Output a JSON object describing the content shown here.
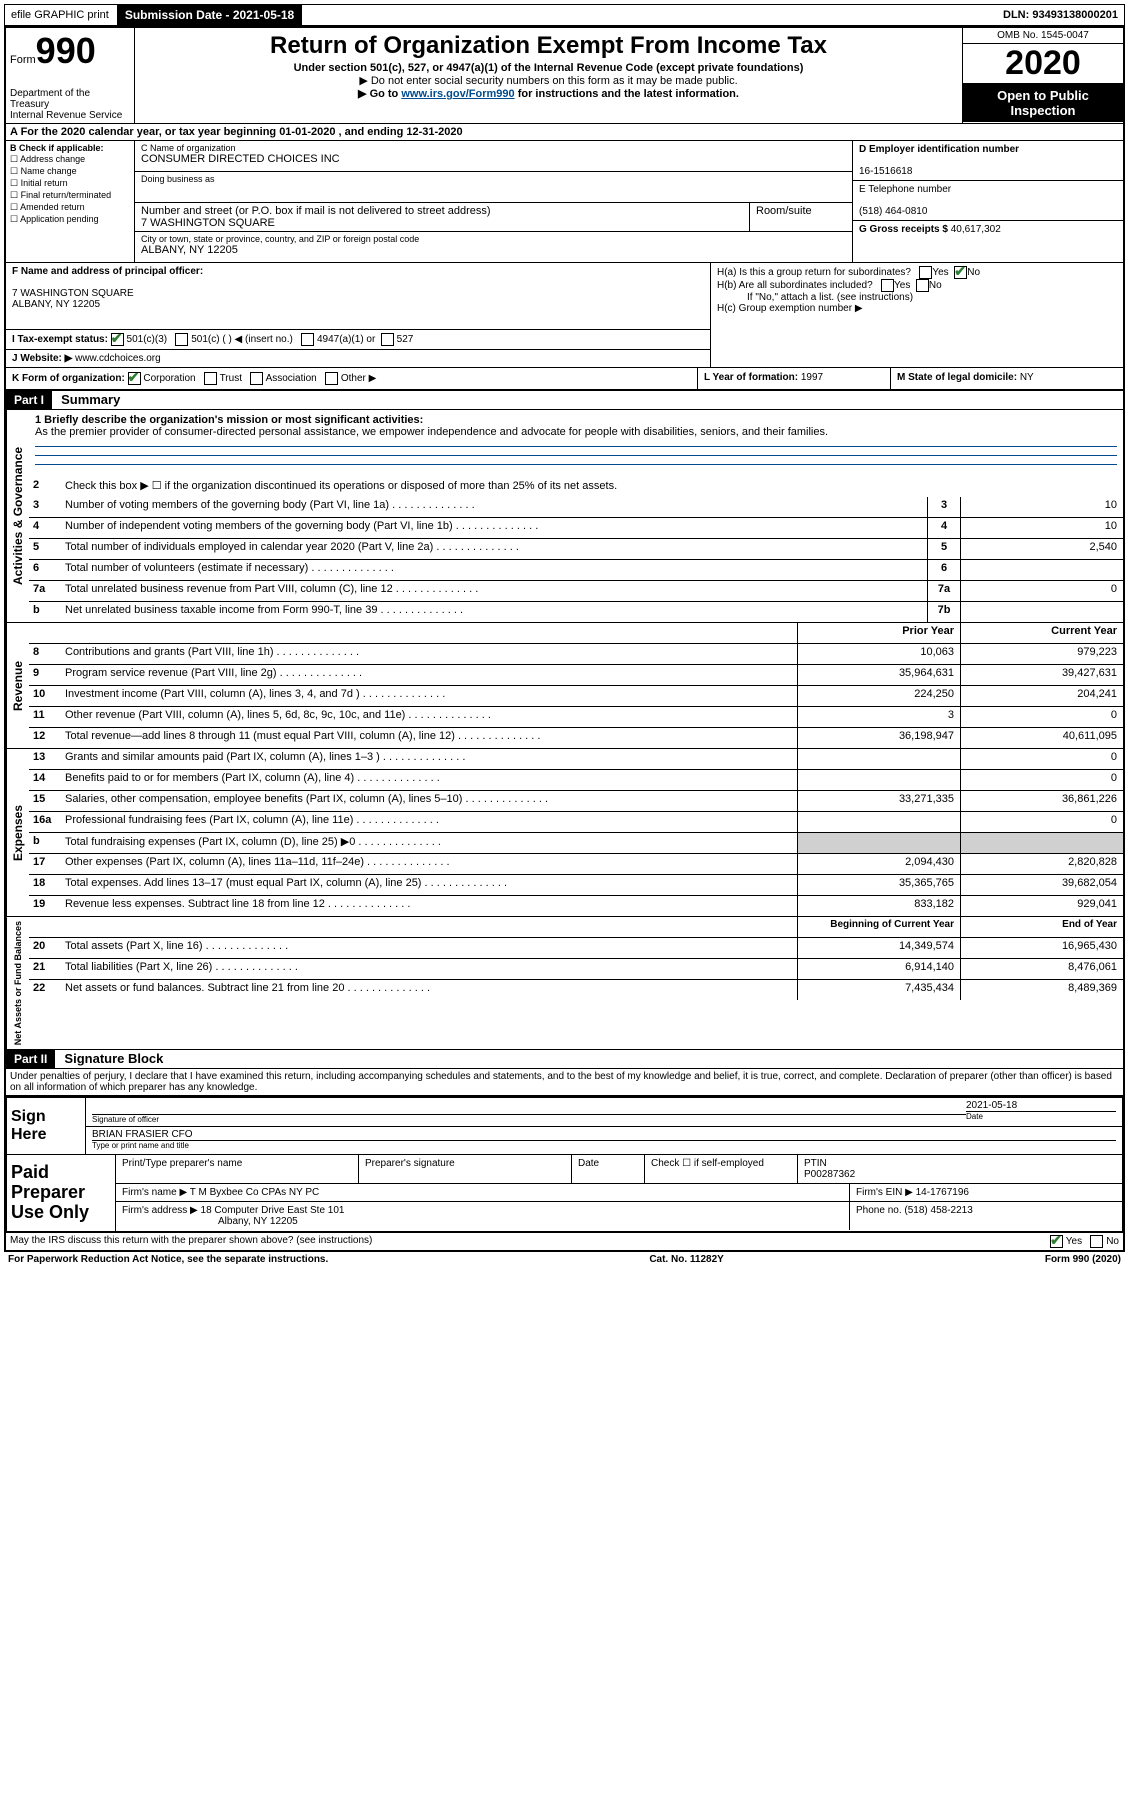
{
  "colors": {
    "black": "#000000",
    "white": "#ffffff",
    "link": "#004b8d",
    "check": "#2e7d32",
    "grey": "#d0d0d0"
  },
  "topbar": {
    "efile": "efile GRAPHIC print",
    "submission_label": "Submission Date - 2021-05-18",
    "dln": "DLN: 93493138000201"
  },
  "header": {
    "form_label": "Form",
    "form_no": "990",
    "dept": "Department of the Treasury\nInternal Revenue Service",
    "title": "Return of Organization Exempt From Income Tax",
    "subtitle": "Under section 501(c), 527, or 4947(a)(1) of the Internal Revenue Code (except private foundations)",
    "note1": "▶ Do not enter social security numbers on this form as it may be made public.",
    "note2_pre": "▶ Go to ",
    "note2_link": "www.irs.gov/Form990",
    "note2_post": " for instructions and the latest information.",
    "omb": "OMB No. 1545-0047",
    "year": "2020",
    "open": "Open to Public Inspection"
  },
  "row_a": "A For the 2020 calendar year, or tax year beginning 01-01-2020    , and ending 12-31-2020",
  "col_b": {
    "label": "B Check if applicable:",
    "items": [
      "Address change",
      "Name change",
      "Initial return",
      "Final return/terminated",
      "Amended return",
      "Application pending"
    ]
  },
  "col_c": {
    "name_lbl": "C Name of organization",
    "name": "CONSUMER DIRECTED CHOICES INC",
    "dba_lbl": "Doing business as",
    "addr_lbl": "Number and street (or P.O. box if mail is not delivered to street address)",
    "room_lbl": "Room/suite",
    "addr": "7 WASHINGTON SQUARE",
    "city_lbl": "City or town, state or province, country, and ZIP or foreign postal code",
    "city": "ALBANY, NY  12205",
    "officer_lbl": "F  Name and address of principal officer:",
    "officer": "7 WASHINGTON SQUARE\nALBANY, NY  12205"
  },
  "col_de": {
    "d_lbl": "D Employer identification number",
    "d_val": "16-1516618",
    "e_lbl": "E Telephone number",
    "e_val": "(518) 464-0810",
    "g_lbl": "G Gross receipts $",
    "g_val": "40,617,302"
  },
  "h": {
    "a": "H(a)  Is this a group return for subordinates?",
    "b": "H(b)  Are all subordinates included?",
    "b_note": "If \"No,\" attach a list. (see instructions)",
    "c": "H(c)  Group exemption number ▶",
    "yes": "Yes",
    "no": "No"
  },
  "i": {
    "lbl": "I  Tax-exempt status:",
    "opts": [
      "501(c)(3)",
      "501(c) (  ) ◀ (insert no.)",
      "4947(a)(1) or",
      "527"
    ]
  },
  "j": {
    "lbl": "J  Website: ▶",
    "val": "www.cdchoices.org"
  },
  "k": {
    "lbl": "K Form of organization:",
    "opts": [
      "Corporation",
      "Trust",
      "Association",
      "Other ▶"
    ]
  },
  "l": {
    "lbl": "L Year of formation:",
    "val": "1997"
  },
  "m": {
    "lbl": "M State of legal domicile:",
    "val": "NY"
  },
  "part1": {
    "hdr": "Part I",
    "title": "Summary"
  },
  "mission": {
    "lbl": "1  Briefly describe the organization's mission or most significant activities:",
    "text": "As the premier provider of consumer-directed personal assistance, we empower independence and advocate for people with disabilities, seniors, and their families."
  },
  "line2": "Check this box ▶ ☐  if the organization discontinued its operations or disposed of more than 25% of its net assets.",
  "vtabs": {
    "gov": "Activities & Governance",
    "rev": "Revenue",
    "exp": "Expenses",
    "net": "Net Assets or Fund Balances"
  },
  "gov_lines": [
    {
      "n": "3",
      "d": "Number of voting members of the governing body (Part VI, line 1a)",
      "box": "3",
      "v": "10"
    },
    {
      "n": "4",
      "d": "Number of independent voting members of the governing body (Part VI, line 1b)",
      "box": "4",
      "v": "10"
    },
    {
      "n": "5",
      "d": "Total number of individuals employed in calendar year 2020 (Part V, line 2a)",
      "box": "5",
      "v": "2,540"
    },
    {
      "n": "6",
      "d": "Total number of volunteers (estimate if necessary)",
      "box": "6",
      "v": ""
    },
    {
      "n": "7a",
      "d": "Total unrelated business revenue from Part VIII, column (C), line 12",
      "box": "7a",
      "v": "0"
    },
    {
      "n": "b",
      "d": "Net unrelated business taxable income from Form 990-T, line 39",
      "box": "7b",
      "v": ""
    }
  ],
  "col_headers": {
    "prior": "Prior Year",
    "current": "Current Year"
  },
  "rev_lines": [
    {
      "n": "8",
      "d": "Contributions and grants (Part VIII, line 1h)",
      "p": "10,063",
      "c": "979,223"
    },
    {
      "n": "9",
      "d": "Program service revenue (Part VIII, line 2g)",
      "p": "35,964,631",
      "c": "39,427,631"
    },
    {
      "n": "10",
      "d": "Investment income (Part VIII, column (A), lines 3, 4, and 7d )",
      "p": "224,250",
      "c": "204,241"
    },
    {
      "n": "11",
      "d": "Other revenue (Part VIII, column (A), lines 5, 6d, 8c, 9c, 10c, and 11e)",
      "p": "3",
      "c": "0"
    },
    {
      "n": "12",
      "d": "Total revenue—add lines 8 through 11 (must equal Part VIII, column (A), line 12)",
      "p": "36,198,947",
      "c": "40,611,095"
    }
  ],
  "exp_lines": [
    {
      "n": "13",
      "d": "Grants and similar amounts paid (Part IX, column (A), lines 1–3 )",
      "p": "",
      "c": "0"
    },
    {
      "n": "14",
      "d": "Benefits paid to or for members (Part IX, column (A), line 4)",
      "p": "",
      "c": "0"
    },
    {
      "n": "15",
      "d": "Salaries, other compensation, employee benefits (Part IX, column (A), lines 5–10)",
      "p": "33,271,335",
      "c": "36,861,226"
    },
    {
      "n": "16a",
      "d": "Professional fundraising fees (Part IX, column (A), line 11e)",
      "p": "",
      "c": "0"
    },
    {
      "n": "b",
      "d": "Total fundraising expenses (Part IX, column (D), line 25) ▶0",
      "p": "GREY",
      "c": "GREY"
    },
    {
      "n": "17",
      "d": "Other expenses (Part IX, column (A), lines 11a–11d, 11f–24e)",
      "p": "2,094,430",
      "c": "2,820,828"
    },
    {
      "n": "18",
      "d": "Total expenses. Add lines 13–17 (must equal Part IX, column (A), line 25)",
      "p": "35,365,765",
      "c": "39,682,054"
    },
    {
      "n": "19",
      "d": "Revenue less expenses. Subtract line 18 from line 12",
      "p": "833,182",
      "c": "929,041"
    }
  ],
  "net_headers": {
    "begin": "Beginning of Current Year",
    "end": "End of Year"
  },
  "net_lines": [
    {
      "n": "20",
      "d": "Total assets (Part X, line 16)",
      "p": "14,349,574",
      "c": "16,965,430"
    },
    {
      "n": "21",
      "d": "Total liabilities (Part X, line 26)",
      "p": "6,914,140",
      "c": "8,476,061"
    },
    {
      "n": "22",
      "d": "Net assets or fund balances. Subtract line 21 from line 20",
      "p": "7,435,434",
      "c": "8,489,369"
    }
  ],
  "part2": {
    "hdr": "Part II",
    "title": "Signature Block"
  },
  "declaration": "Under penalties of perjury, I declare that I have examined this return, including accompanying schedules and statements, and to the best of my knowledge and belief, it is true, correct, and complete. Declaration of preparer (other than officer) is based on all information of which preparer has any knowledge.",
  "sign": {
    "here": "Sign Here",
    "sig_lbl": "Signature of officer",
    "date": "2021-05-18",
    "date_lbl": "Date",
    "name": "BRIAN FRASIER CFO",
    "name_lbl": "Type or print name and title"
  },
  "prep": {
    "left": "Paid Preparer Use Only",
    "h1": "Print/Type preparer's name",
    "h2": "Preparer's signature",
    "h3": "Date",
    "h4": "Check ☐  if self-employed",
    "h5_lbl": "PTIN",
    "h5": "P00287362",
    "firm_lbl": "Firm's name    ▶",
    "firm": "T M Byxbee Co CPAs NY PC",
    "ein_lbl": "Firm's EIN ▶",
    "ein": "14-1767196",
    "addr_lbl": "Firm's address ▶",
    "addr1": "18 Computer Drive East Ste 101",
    "addr2": "Albany, NY  12205",
    "phone_lbl": "Phone no.",
    "phone": "(518) 458-2213"
  },
  "irs_discuss": "May the IRS discuss this return with the preparer shown above? (see instructions)",
  "footer": {
    "left": "For Paperwork Reduction Act Notice, see the separate instructions.",
    "mid": "Cat. No. 11282Y",
    "right": "Form 990 (2020)"
  }
}
